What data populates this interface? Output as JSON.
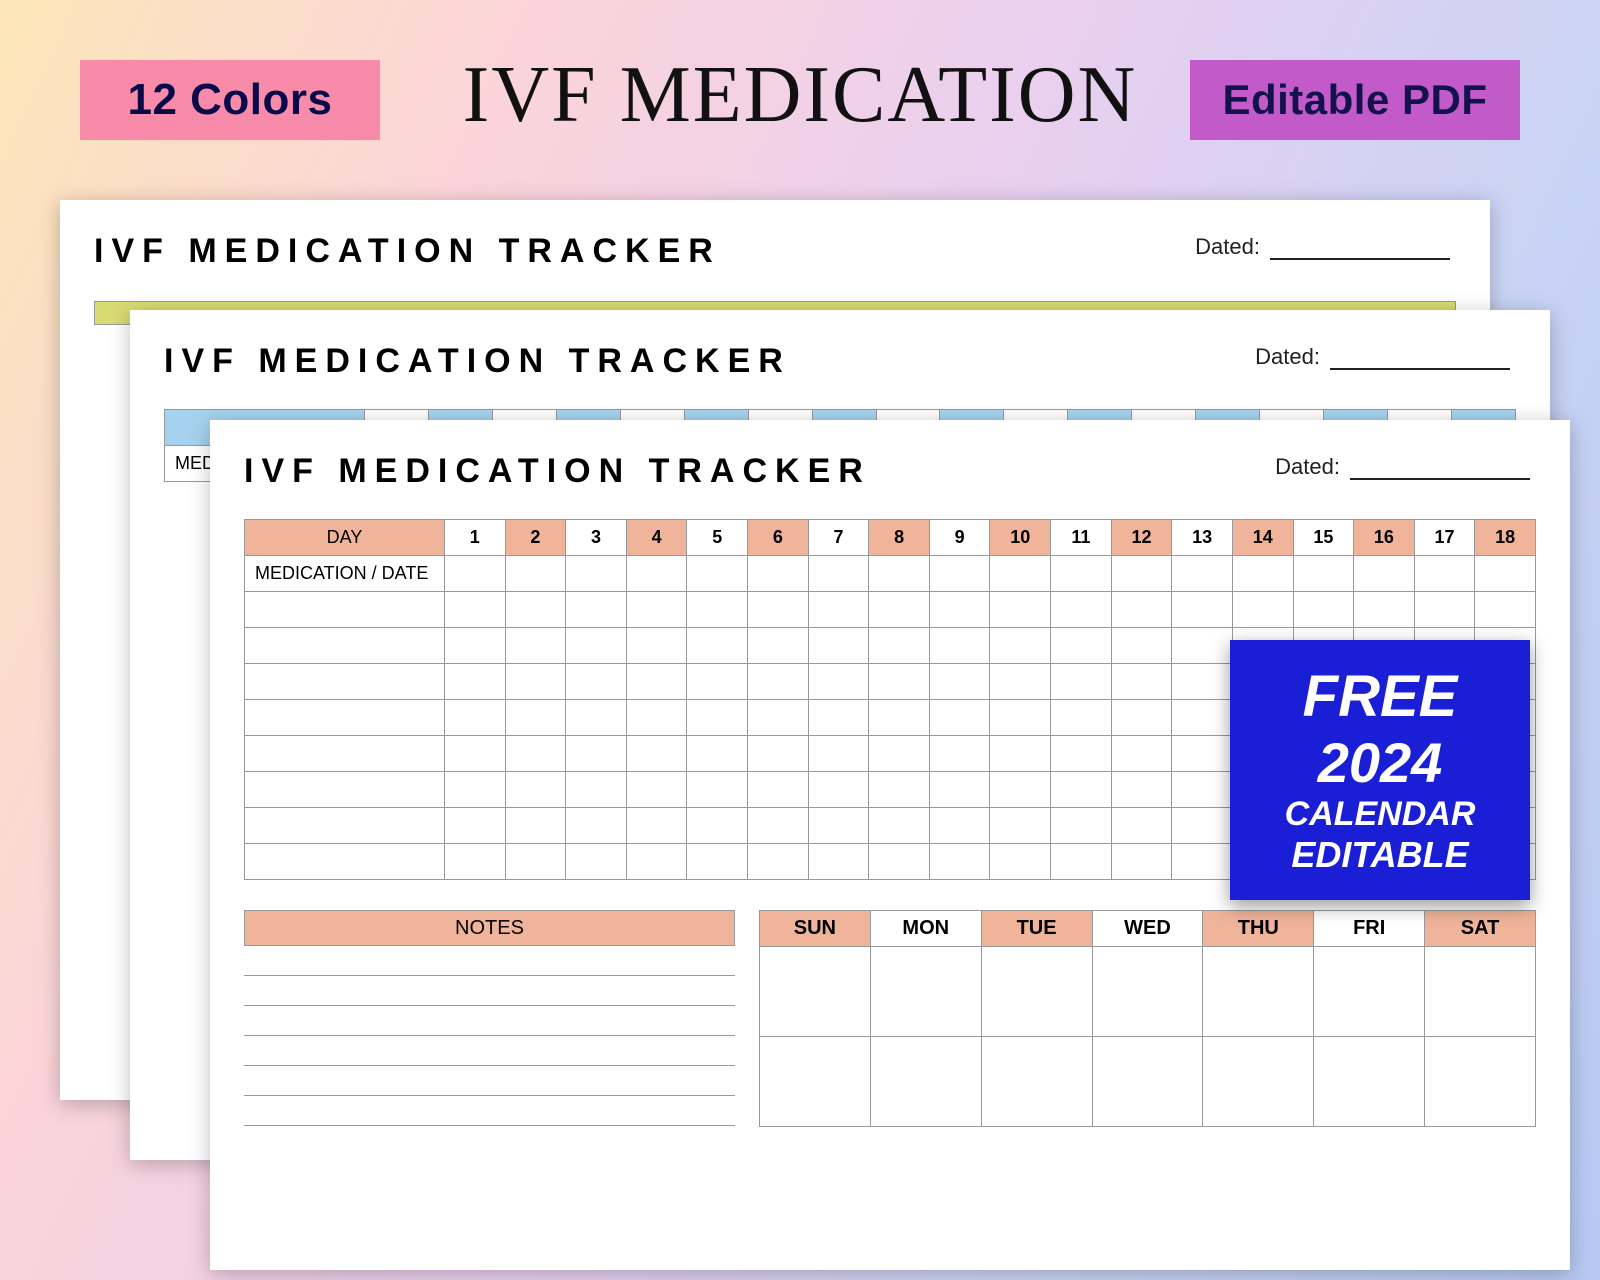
{
  "colors": {
    "badge_left_bg": "#f88aaa",
    "badge_left_text": "#0a0a4a",
    "badge_right_bg": "#c25bc9",
    "badge_right_text": "#12124d",
    "promo_bg": "#1a1fd6",
    "accent_back": "#d8db72",
    "accent_mid": "#a5d3ef",
    "accent_front": "#efb49a"
  },
  "header": {
    "badge_left": "12 Colors",
    "title": "IVF MEDICATION",
    "badge_right": "Editable PDF"
  },
  "sheet": {
    "title": "IVF MEDICATION TRACKER",
    "dated_label": "Dated:",
    "day_label": "DAY",
    "med_label": "MEDICATION / DATE",
    "days": [
      "1",
      "2",
      "3",
      "4",
      "5",
      "6",
      "7",
      "8",
      "9",
      "10",
      "11",
      "12",
      "13",
      "14",
      "15",
      "16",
      "17",
      "18"
    ],
    "tracker_rows": 9,
    "notes_label": "NOTES",
    "notes_lines": 6,
    "weekdays": [
      "SUN",
      "MON",
      "TUE",
      "WED",
      "THU",
      "FRI",
      "SAT"
    ]
  },
  "promo": {
    "line1": "FREE",
    "line2": "2024",
    "line3": "CALENDAR",
    "line4": "EDITABLE"
  }
}
